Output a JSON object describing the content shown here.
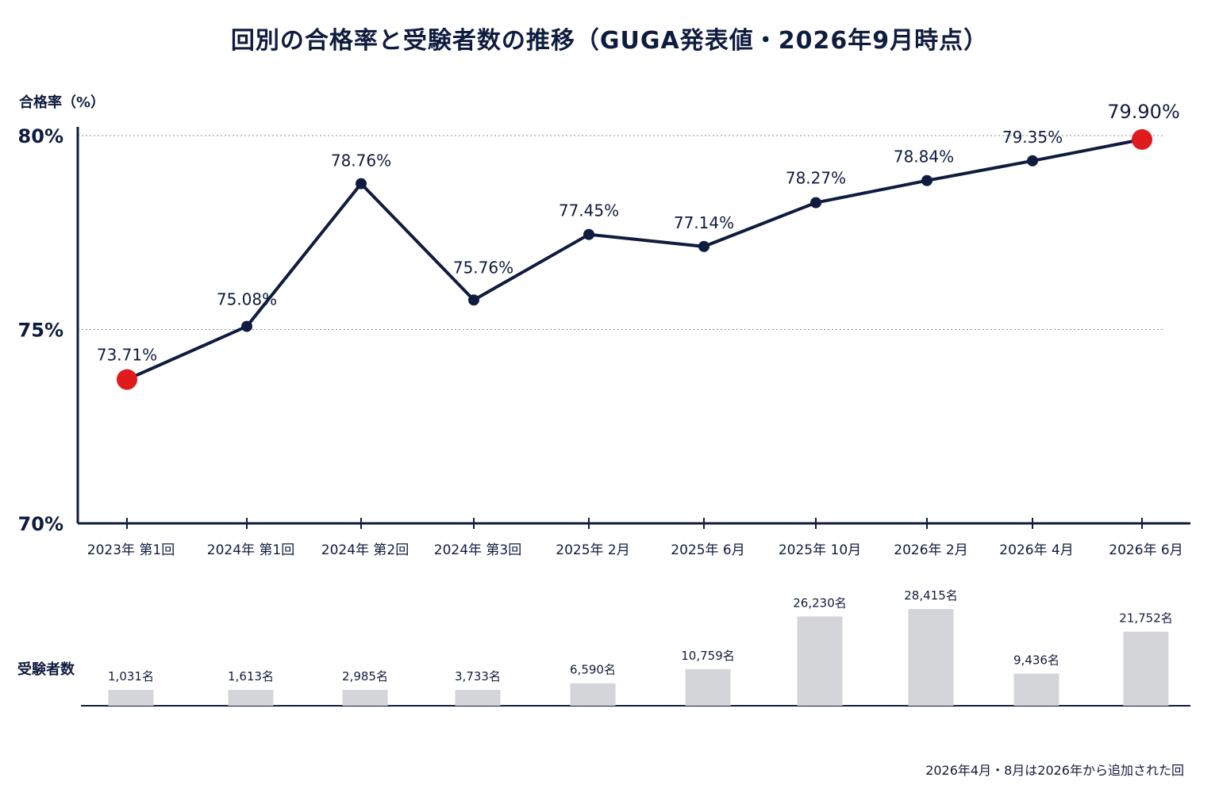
{
  "title": "回別の合格率と受験者数の推移（GUGA発表値・2026年9月時点）",
  "footnote": "2026年4月・8月は2026年から追加された回",
  "colors": {
    "navy": "#0f1c3f",
    "highlight": "#e01b1b",
    "bar": "#d4d5d8",
    "grid": "#8a8f9c"
  },
  "chart_data": [
    {
      "type": "line",
      "title": "回別の合格率と受験者数の推移（GUGA発表値・2026年9月時点）",
      "ylabel": "合格率（%）",
      "ylim": [
        70,
        80
      ],
      "yticks": [
        {
          "value": 80,
          "label": "80%"
        },
        {
          "value": 75,
          "label": "75%"
        },
        {
          "value": 70,
          "label": "70%"
        }
      ],
      "grid": "dotted horizontal at 75% and 80%",
      "categories": [
        "2023年 第1回",
        "2024年 第1回",
        "2024年 第2回",
        "2024年 第3回",
        "2025年 2月",
        "2025年 6月",
        "2025年 10月",
        "2026年 2月",
        "2026年 4月",
        "2026年 6月"
      ],
      "values": [
        73.71,
        75.08,
        78.76,
        75.76,
        77.45,
        77.14,
        78.27,
        78.84,
        79.35,
        79.9
      ],
      "data_labels": [
        "73.71%",
        "75.08%",
        "78.76%",
        "75.76%",
        "77.45%",
        "77.14%",
        "78.27%",
        "78.84%",
        "79.35%",
        "79.90%"
      ],
      "highlighted_points": [
        0,
        9
      ]
    },
    {
      "type": "bar",
      "ylabel": "受験者数",
      "categories": [
        "2023年 第1回",
        "2024年 第1回",
        "2024年 第2回",
        "2024年 第3回",
        "2025年 2月",
        "2025年 6月",
        "2025年 10月",
        "2026年 2月",
        "2026年 4月",
        "2026年 6月"
      ],
      "values": [
        1031,
        1613,
        2985,
        3733,
        6590,
        10759,
        26230,
        28415,
        9436,
        21752
      ],
      "data_labels": [
        "1,031名",
        "1,613名",
        "2,985名",
        "3,733名",
        "6,590名",
        "10,759名",
        "26,230名",
        "28,415名",
        "9,436名",
        "21,752名"
      ]
    }
  ]
}
